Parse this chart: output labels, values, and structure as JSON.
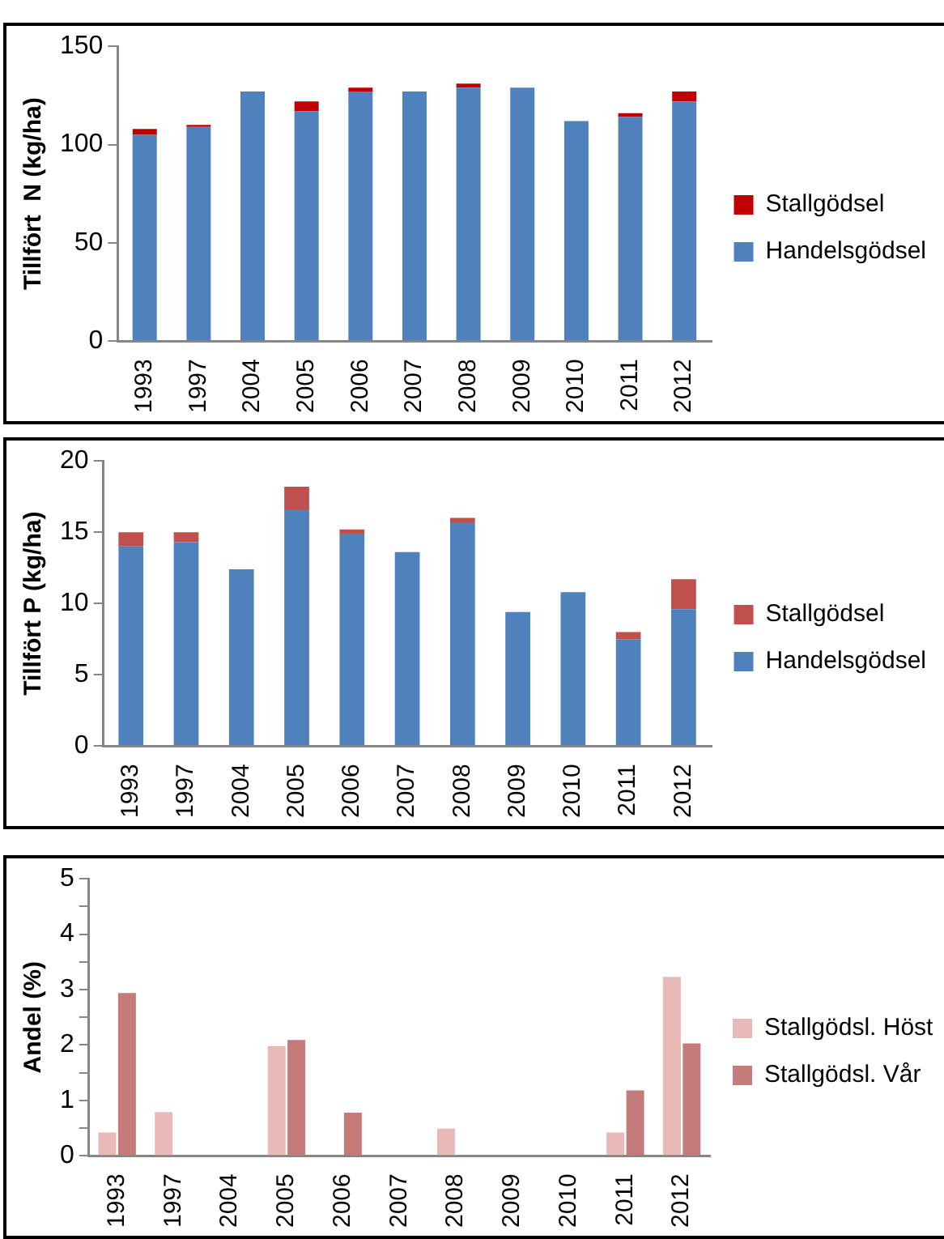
{
  "chart_data": [
    {
      "type": "bar",
      "ylabel": "Tillfört  N (kg/ha)",
      "categories": [
        "1993",
        "1997",
        "2004",
        "2005",
        "2006",
        "2007",
        "2008",
        "2009",
        "2010",
        "2011",
        "2012"
      ],
      "stacked": true,
      "ylim": [
        0,
        150
      ],
      "yticks": [
        0,
        50,
        100,
        150
      ],
      "grid": false,
      "legend": "right",
      "series": [
        {
          "name": "Handelsgödsel",
          "color": "#4f81bd",
          "values": [
            105,
            109,
            127,
            117,
            127,
            127,
            129,
            129,
            112,
            114,
            122
          ]
        },
        {
          "name": "Stallgödsel",
          "color": "#c00000",
          "values": [
            3,
            1,
            0,
            5,
            2,
            0,
            2,
            0,
            0,
            2,
            5
          ]
        }
      ]
    },
    {
      "type": "bar",
      "ylabel": "Tillfört P (kg/ha)",
      "categories": [
        "1993",
        "1997",
        "2004",
        "2005",
        "2006",
        "2007",
        "2008",
        "2009",
        "2010",
        "2011",
        "2012"
      ],
      "stacked": true,
      "ylim": [
        0,
        20
      ],
      "yticks": [
        0,
        5,
        10,
        15,
        20
      ],
      "grid": false,
      "legend": "right",
      "series": [
        {
          "name": "Handelsgödsel",
          "color": "#4f81bd",
          "values": [
            14,
            14.3,
            12.4,
            16.6,
            14.9,
            13.6,
            15.7,
            9.4,
            10.8,
            7.5,
            9.6
          ]
        },
        {
          "name": "Stallgödsel",
          "color": "#c0504d",
          "values": [
            1,
            0.7,
            0,
            1.6,
            0.3,
            0,
            0.3,
            0,
            0,
            0.5,
            2.1
          ]
        }
      ]
    },
    {
      "type": "bar",
      "ylabel": "Andel (%)",
      "categories": [
        "1993",
        "1997",
        "2004",
        "2005",
        "2006",
        "2007",
        "2008",
        "2009",
        "2010",
        "2011",
        "2012"
      ],
      "ylim": [
        0,
        5
      ],
      "yticks": [
        0,
        {
          "value": 0.5,
          "label": null
        },
        1,
        {
          "value": 1.5,
          "label": null
        },
        2,
        {
          "value": 2.5,
          "label": null
        },
        3,
        {
          "value": 3.5,
          "label": null
        },
        4,
        {
          "value": 4.5,
          "label": null
        },
        5
      ],
      "grid": false,
      "legend": "right",
      "series": [
        {
          "name": "Stallgödsl. Höst",
          "color": "#e9b9b8",
          "values": [
            0.42,
            0.79,
            0,
            1.98,
            0,
            0,
            0.49,
            0,
            0,
            0.42,
            3.23
          ]
        },
        {
          "name": "Stallgödsl. Vår",
          "color": "#c47b79",
          "values": [
            2.94,
            0,
            0,
            2.09,
            0.78,
            0,
            0,
            0,
            0,
            1.18,
            2.03
          ]
        }
      ]
    }
  ]
}
